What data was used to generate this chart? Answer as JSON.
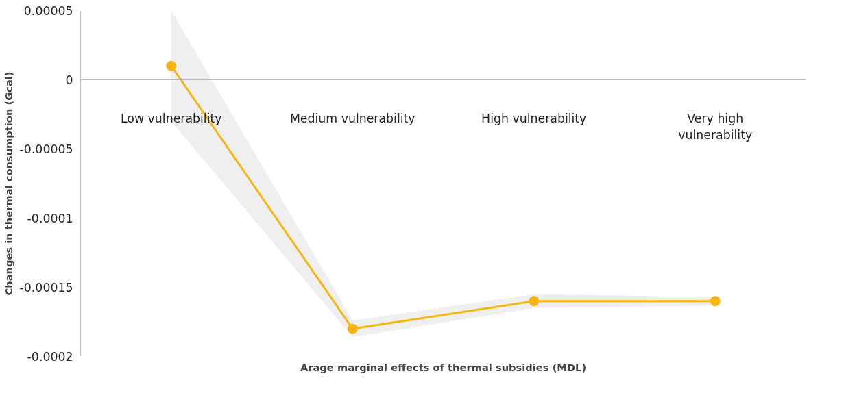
{
  "chart_data": {
    "type": "line",
    "xlabel": "Arage marginal effects of thermal subsidies (MDL)",
    "ylabel": "Changes in thermal consumption (Gcal)",
    "categories": [
      "Low vulnerability",
      "Medium vulnerability",
      "High vulnerability",
      "Very high vulnerability"
    ],
    "series": [
      {
        "color": "#f7b512",
        "values": [
          1e-05,
          -0.00018,
          -0.00016,
          -0.00016
        ],
        "lower": [
          -3e-05,
          -0.000186,
          -0.000165,
          -0.000163
        ],
        "upper": [
          5e-05,
          -0.000174,
          -0.000155,
          -0.000157
        ]
      }
    ],
    "ylim": [
      -0.0002,
      5e-05
    ],
    "yticks": [
      {
        "value": 5e-05,
        "label": "0.00005"
      },
      0,
      {
        "value": -5e-05,
        "label": "-0.00005"
      },
      {
        "value": -0.0001,
        "label": "-0.0001"
      },
      {
        "value": -0.00015,
        "label": "-0.00015"
      },
      {
        "value": -0.0002,
        "label": "-0.0002"
      }
    ],
    "marker": "circle",
    "line_style": "solid",
    "ref_lines": [
      {
        "axis": "y",
        "value": 0,
        "color": "#bbbbbb"
      }
    ]
  }
}
